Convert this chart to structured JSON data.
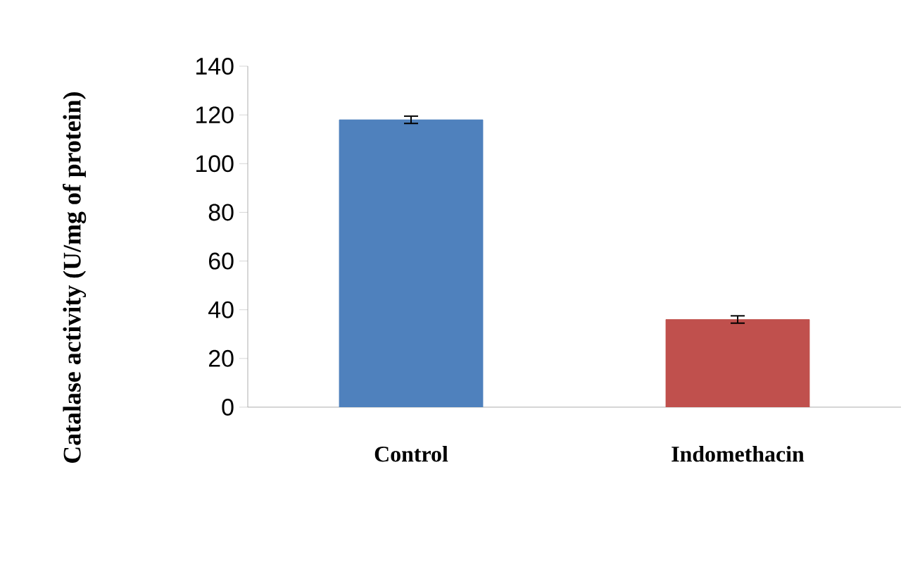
{
  "chart_data": {
    "type": "bar",
    "ylabel": "Catalase activity (U/mg of protein)",
    "categories": [
      "Control",
      "Indomethacin"
    ],
    "values": [
      118,
      36
    ],
    "errors": [
      1.5,
      1.5
    ],
    "colors": [
      "#4f81bd",
      "#c0504d"
    ],
    "ylim": [
      0,
      140
    ],
    "yticks": [
      0,
      20,
      40,
      60,
      80,
      100,
      120,
      140
    ],
    "grid": false
  }
}
